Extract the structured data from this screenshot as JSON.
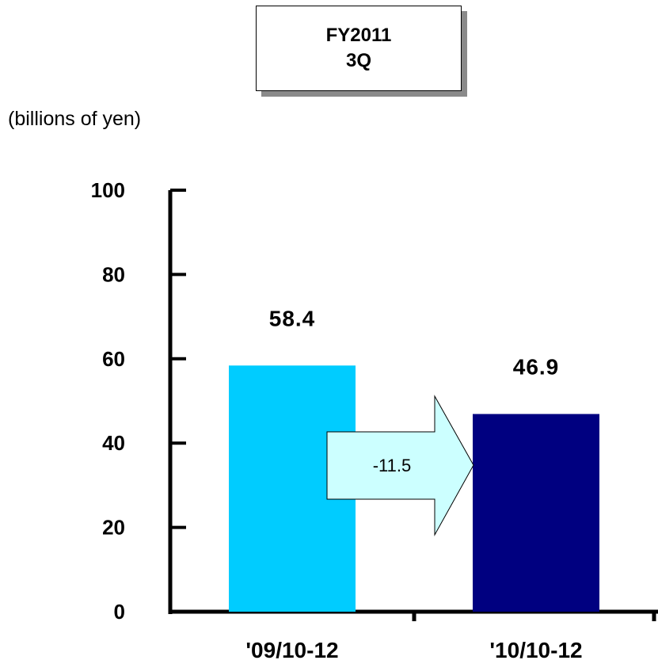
{
  "header": {
    "line1": "FY2011",
    "line2": "3Q"
  },
  "unit_label": "(billions of yen)",
  "chart_data": {
    "type": "bar",
    "title": "FY2011 3Q",
    "ylabel": "(billions of yen)",
    "xlabel": "",
    "categories": [
      "'09/10-12",
      "'10/10-12"
    ],
    "values": [
      58.4,
      46.9
    ],
    "data_labels": [
      "58.4",
      "46.9"
    ],
    "bar_colors": [
      "#00CCFF",
      "#000080"
    ],
    "ylim": [
      0,
      100
    ],
    "yticks": [
      0,
      20,
      40,
      60,
      80,
      100
    ],
    "grid": false,
    "legend": "none",
    "annotation": {
      "type": "arrow",
      "label": "-11.5",
      "fill": "#CCFFFF",
      "from": "'09/10-12",
      "to": "'10/10-12"
    }
  }
}
